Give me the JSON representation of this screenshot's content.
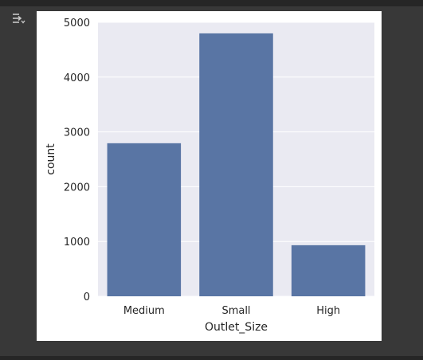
{
  "toolbar": {
    "output_toggle_icon": "output-collapse-icon"
  },
  "colors": {
    "bar": "#5975a4",
    "plot_bg": "#eaeaf2",
    "grid": "#ffffff",
    "text": "#262626",
    "page_bg": "#383838"
  },
  "chart_data": {
    "type": "bar",
    "categories": [
      "Medium",
      "Small",
      "High"
    ],
    "values": [
      2793,
      4798,
      932
    ],
    "title": "",
    "xlabel": "Outlet_Size",
    "ylabel": "count",
    "ylim": [
      0,
      5000
    ],
    "yticks": [
      0,
      1000,
      2000,
      3000,
      4000,
      5000
    ],
    "grid": true,
    "legend": "none"
  }
}
